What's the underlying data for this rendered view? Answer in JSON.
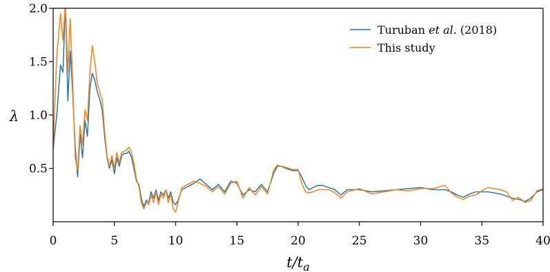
{
  "chart_data": {
    "type": "line",
    "title": "",
    "xlabel": "t/t_a",
    "ylabel": "λ",
    "xlim": [
      0,
      40
    ],
    "ylim": [
      0,
      2.0
    ],
    "grid": false,
    "legend_placement": "top-right",
    "x_ticks": [
      "0",
      "5",
      "10",
      "15",
      "20",
      "25",
      "30",
      "35",
      "40"
    ],
    "y_ticks": [
      "0.5",
      "1.0",
      "1.5",
      "2.0"
    ],
    "legend": {
      "entries": [
        {
          "label": "Turuban et al. (2018)",
          "label_main": "Turuban ",
          "label_italic": "et al.",
          "label_tail": " (2018)"
        },
        {
          "label": "This study"
        }
      ]
    },
    "colors": {
      "series_1": "#1f77b4",
      "series_2": "#ff7f0e"
    },
    "series": [
      {
        "name": "Turuban et al. (2018)",
        "x": [
          0,
          0.3,
          0.6,
          0.8,
          1.0,
          1.2,
          1.4,
          1.6,
          1.8,
          2.0,
          2.2,
          2.4,
          2.6,
          2.8,
          3.0,
          3.2,
          3.4,
          3.6,
          3.8,
          4.0,
          4.2,
          4.4,
          4.6,
          4.8,
          5.0,
          5.2,
          5.4,
          5.6,
          5.8,
          6.0,
          6.2,
          6.4,
          6.6,
          6.8,
          7.0,
          7.2,
          7.4,
          7.6,
          7.8,
          8.0,
          8.2,
          8.4,
          8.6,
          8.8,
          9.0,
          9.2,
          9.4,
          9.6,
          9.8,
          10.0,
          10.2,
          10.5,
          11.0,
          11.5,
          12.0,
          12.5,
          13.0,
          13.5,
          14.0,
          14.5,
          15.0,
          15.5,
          16.0,
          16.5,
          17.0,
          17.5,
          18.0,
          18.3,
          18.6,
          19.0,
          19.5,
          20.0,
          20.3,
          20.6,
          20.9,
          21.2,
          21.6,
          22.0,
          22.5,
          23.0,
          23.5,
          24.0,
          25.0,
          26.0,
          27.0,
          28.0,
          29.0,
          30.0,
          31.0,
          32.0,
          32.5,
          33.0,
          33.5,
          34.0,
          34.5,
          35.0,
          35.5,
          36.0,
          36.5,
          37.0,
          37.5,
          38.0,
          38.5,
          39.0,
          39.5,
          40.0
        ],
        "y": [
          0.68,
          1.0,
          1.47,
          1.4,
          2.05,
          1.13,
          1.6,
          1.2,
          0.7,
          0.42,
          0.82,
          0.6,
          0.95,
          0.8,
          1.25,
          1.39,
          1.33,
          1.22,
          1.15,
          1.05,
          0.8,
          0.6,
          0.5,
          0.58,
          0.45,
          0.6,
          0.52,
          0.62,
          0.64,
          0.64,
          0.66,
          0.6,
          0.5,
          0.38,
          0.35,
          0.22,
          0.14,
          0.2,
          0.18,
          0.28,
          0.22,
          0.3,
          0.2,
          0.28,
          0.25,
          0.3,
          0.22,
          0.28,
          0.18,
          0.16,
          0.2,
          0.3,
          0.33,
          0.36,
          0.4,
          0.35,
          0.3,
          0.35,
          0.28,
          0.38,
          0.36,
          0.25,
          0.3,
          0.28,
          0.35,
          0.28,
          0.45,
          0.52,
          0.52,
          0.5,
          0.48,
          0.48,
          0.42,
          0.34,
          0.3,
          0.32,
          0.34,
          0.34,
          0.32,
          0.3,
          0.25,
          0.3,
          0.3,
          0.28,
          0.29,
          0.3,
          0.31,
          0.32,
          0.3,
          0.3,
          0.28,
          0.25,
          0.23,
          0.26,
          0.28,
          0.28,
          0.28,
          0.27,
          0.26,
          0.24,
          0.22,
          0.21,
          0.19,
          0.22,
          0.28,
          0.3
        ]
      },
      {
        "name": "This study",
        "x": [
          0,
          0.3,
          0.6,
          0.8,
          1.0,
          1.2,
          1.4,
          1.6,
          1.8,
          2.0,
          2.2,
          2.4,
          2.6,
          2.8,
          3.0,
          3.2,
          3.4,
          3.6,
          3.8,
          4.0,
          4.2,
          4.4,
          4.6,
          4.8,
          5.0,
          5.2,
          5.4,
          5.6,
          5.8,
          6.0,
          6.2,
          6.4,
          6.6,
          6.8,
          7.0,
          7.2,
          7.4,
          7.6,
          7.8,
          8.0,
          8.2,
          8.4,
          8.6,
          8.8,
          9.0,
          9.2,
          9.4,
          9.6,
          9.8,
          10.0,
          10.2,
          10.5,
          11.0,
          11.5,
          12.0,
          12.5,
          13.0,
          13.5,
          14.0,
          14.5,
          15.0,
          15.5,
          16.0,
          16.5,
          17.0,
          17.5,
          18.0,
          18.3,
          18.6,
          19.0,
          19.5,
          20.0,
          20.3,
          20.6,
          20.9,
          21.2,
          21.6,
          22.0,
          22.5,
          23.0,
          23.5,
          24.0,
          25.0,
          26.0,
          27.0,
          28.0,
          29.0,
          30.0,
          31.0,
          32.0,
          32.5,
          33.0,
          33.5,
          34.0,
          34.5,
          35.0,
          35.5,
          36.0,
          36.5,
          37.0,
          37.5,
          38.0,
          38.5,
          39.0,
          39.5,
          40.0
        ],
        "y": [
          0.7,
          1.55,
          1.95,
          1.7,
          2.05,
          1.4,
          1.9,
          1.3,
          0.6,
          0.48,
          0.9,
          0.72,
          1.05,
          0.95,
          1.4,
          1.65,
          1.5,
          1.3,
          1.22,
          1.15,
          0.85,
          0.62,
          0.52,
          0.62,
          0.5,
          0.65,
          0.55,
          0.65,
          0.66,
          0.67,
          0.7,
          0.65,
          0.55,
          0.4,
          0.33,
          0.18,
          0.12,
          0.18,
          0.16,
          0.25,
          0.18,
          0.28,
          0.16,
          0.26,
          0.22,
          0.3,
          0.18,
          0.26,
          0.12,
          0.09,
          0.18,
          0.32,
          0.35,
          0.38,
          0.36,
          0.33,
          0.28,
          0.33,
          0.26,
          0.36,
          0.38,
          0.22,
          0.32,
          0.25,
          0.33,
          0.26,
          0.48,
          0.53,
          0.52,
          0.51,
          0.49,
          0.49,
          0.36,
          0.28,
          0.27,
          0.28,
          0.3,
          0.3,
          0.3,
          0.27,
          0.22,
          0.28,
          0.31,
          0.26,
          0.28,
          0.3,
          0.29,
          0.31,
          0.31,
          0.34,
          0.27,
          0.23,
          0.21,
          0.24,
          0.25,
          0.29,
          0.32,
          0.31,
          0.3,
          0.28,
          0.2,
          0.23,
          0.18,
          0.2,
          0.29,
          0.31
        ]
      }
    ]
  }
}
